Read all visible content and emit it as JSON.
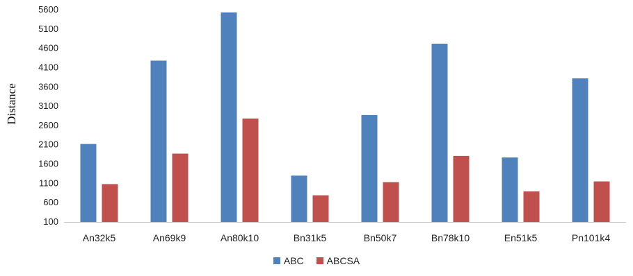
{
  "chart_data": {
    "type": "bar",
    "title": "",
    "xlabel": "",
    "ylabel": "Distance",
    "ylim": [
      100,
      5600
    ],
    "yticks": [
      100,
      600,
      1100,
      1600,
      2100,
      2600,
      3100,
      3600,
      4100,
      4600,
      5100,
      5600
    ],
    "grid": false,
    "legend_position": "bottom",
    "categories": [
      "An32k5",
      "An69k9",
      "An80k10",
      "Bn31k5",
      "Bn50k7",
      "Bn78k10",
      "En51k5",
      "Pn101k4"
    ],
    "series": [
      {
        "name": "ABC",
        "color": "#4F81BD",
        "values": [
          2120,
          4280,
          5530,
          1300,
          2870,
          4720,
          1770,
          3820
        ]
      },
      {
        "name": "ABCSA",
        "color": "#C0504D",
        "values": [
          1080,
          1870,
          2780,
          790,
          1130,
          1810,
          890,
          1150
        ]
      }
    ]
  }
}
